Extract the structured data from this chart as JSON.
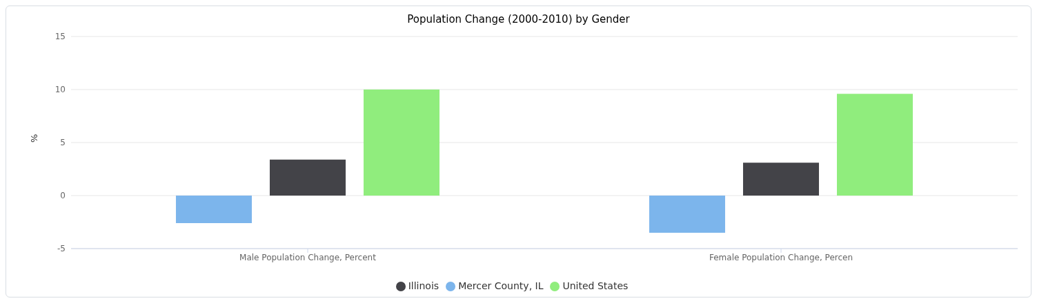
{
  "chart_data": {
    "type": "bar",
    "title": "Population Change (2000-2010) by Gender",
    "ylabel": "%",
    "categories": [
      "Male Population Change, Percent",
      "Female Population Change, Percen"
    ],
    "series": [
      {
        "name": "Mercer County, IL",
        "color": "#7cb5ec",
        "values": [
          -2.6,
          -3.5
        ]
      },
      {
        "name": "Illinois",
        "color": "#434348",
        "values": [
          3.4,
          3.1
        ]
      },
      {
        "name": "United States",
        "color": "#90ed7d",
        "values": [
          10.0,
          9.6
        ]
      }
    ],
    "ylim": [
      -5,
      15
    ],
    "yticks": [
      -5,
      0,
      5,
      10,
      15
    ],
    "grid": "y",
    "legend": "bottom"
  }
}
